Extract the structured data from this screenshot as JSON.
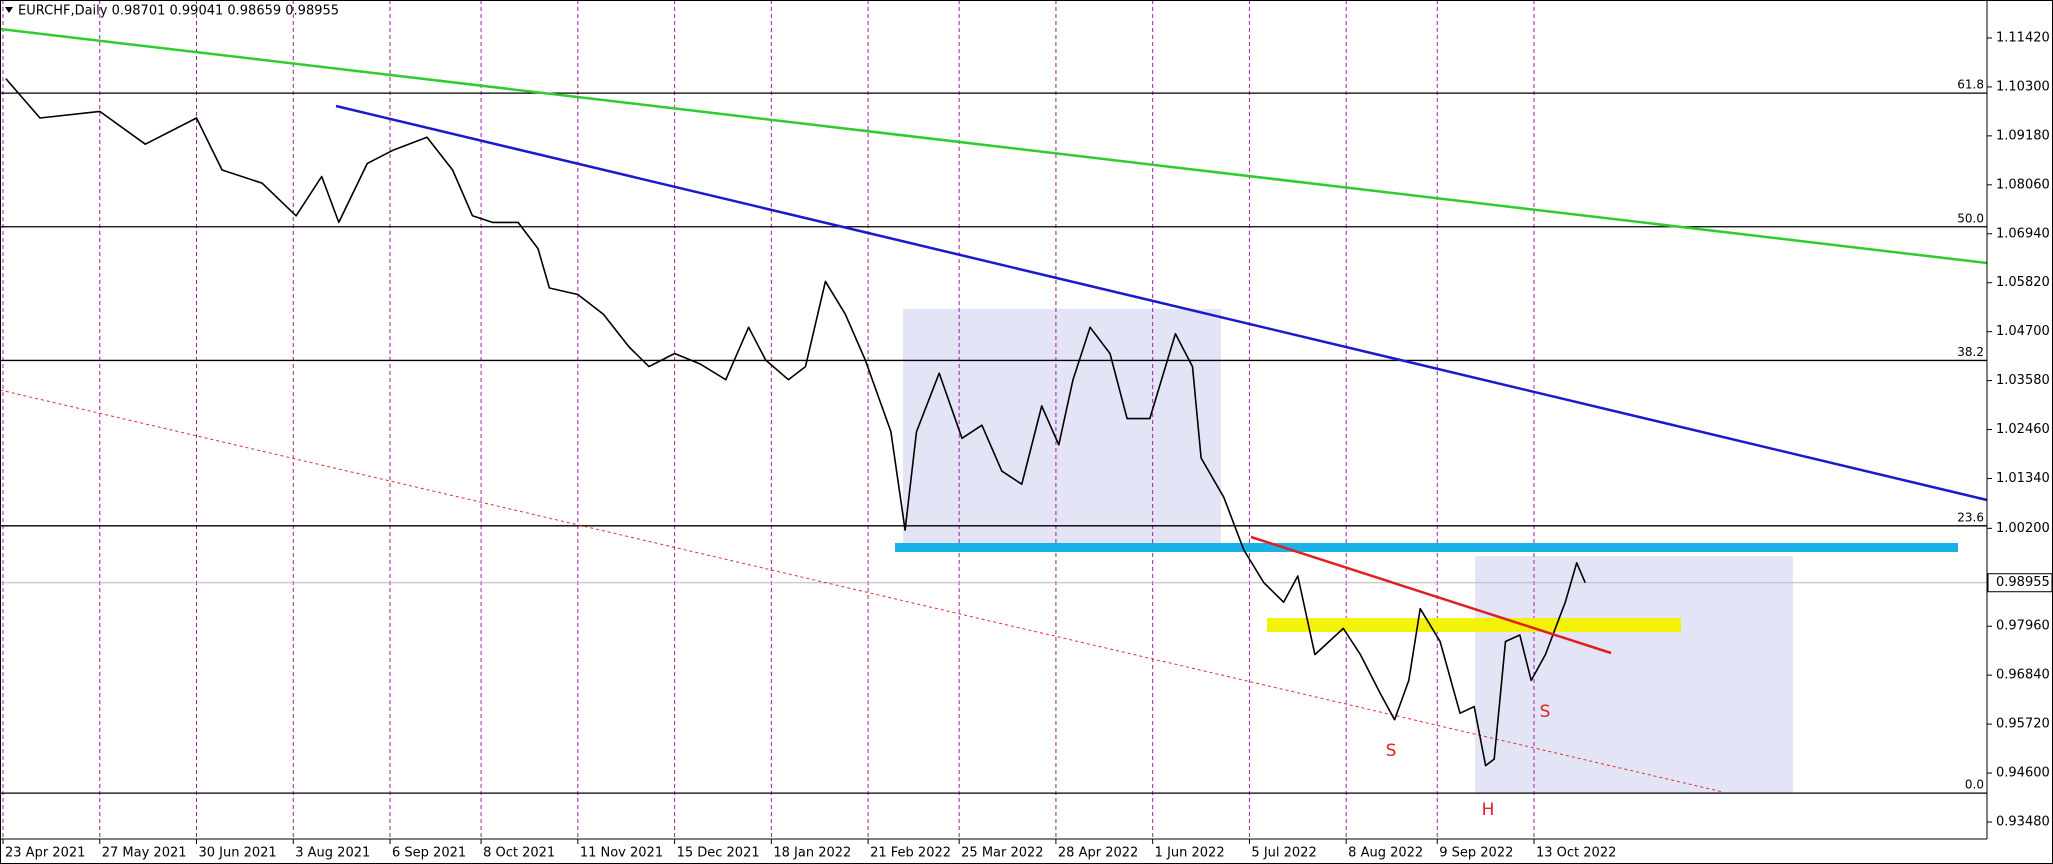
{
  "chart_data": {
    "type": "line",
    "title": "EURCHF,Daily  0.98701 0.99041 0.98659 0.98955",
    "color": "#000000",
    "x": [
      "24 Apr 2021",
      "6 May 2021",
      "27 May 2021",
      "12 Jun 2021",
      "30 Jun 2021",
      "9 Jul 2021",
      "23 Jul 2021",
      "4 Aug 2021",
      "13 Aug 2021",
      "19 Aug 2021",
      "29 Aug 2021",
      "7 Sep 2021",
      "19 Sep 2021",
      "28 Sep 2021",
      "5 Oct 2021",
      "12 Oct 2021",
      "21 Oct 2021",
      "28 Oct 2021",
      "1 Nov 2021",
      "11 Nov 2021",
      "20 Nov 2021",
      "29 Nov 2021",
      "6 Dec 2021",
      "15 Dec 2021",
      "24 Dec 2021",
      "2 Jan 2022",
      "10 Jan 2022",
      "16 Jan 2022",
      "24 Jan 2022",
      "30 Jan 2022",
      "6 Feb 2022",
      "13 Feb 2022",
      "20 Feb 2022",
      "1 Mar 2022",
      "6 Mar 2022",
      "10 Mar 2022",
      "18 Mar 2022",
      "26 Mar 2022",
      "2 Apr 2022",
      "9 Apr 2022",
      "16 Apr 2022",
      "23 Apr 2022",
      "29 Apr 2022",
      "4 May 2022",
      "10 May 2022",
      "17 May 2022",
      "23 May 2022",
      "31 May 2022",
      "9 Jun 2022",
      "15 Jun 2022",
      "18 Jun 2022",
      "26 Jun 2022",
      "3 Jul 2022",
      "10 Jul 2022",
      "17 Jul 2022",
      "22 Jul 2022",
      "28 Jul 2022",
      "7 Aug 2022",
      "13 Aug 2022",
      "20 Aug 2022",
      "25 Aug 2022",
      "30 Aug 2022",
      "3 Sep 2022",
      "10 Sep 2022",
      "17 Sep 2022",
      "22 Sep 2022",
      "26 Sep 2022",
      "29 Sep 2022",
      "3 Oct 2022",
      "8 Oct 2022",
      "12 Oct 2022",
      "17 Oct 2022",
      "24 Oct 2022",
      "28 Oct 2022",
      "31 Oct 2022"
    ],
    "values": [
      1.1049,
      1.0959,
      1.0974,
      1.0899,
      1.0959,
      1.084,
      1.081,
      1.0735,
      1.0825,
      1.072,
      1.0855,
      1.0885,
      1.0915,
      1.084,
      1.0735,
      1.072,
      1.072,
      1.066,
      1.057,
      1.0555,
      1.051,
      1.0435,
      1.039,
      1.042,
      1.0396,
      1.036,
      1.048,
      1.0405,
      1.036,
      1.039,
      1.0585,
      1.051,
      1.0405,
      1.0241,
      1.0016,
      1.0241,
      1.0375,
      1.0226,
      1.0256,
      1.0151,
      1.0121,
      1.03,
      1.0211,
      1.036,
      1.048,
      1.042,
      1.0271,
      1.0271,
      1.0465,
      1.039,
      1.0181,
      1.0091,
      0.9971,
      0.9896,
      0.9851,
      0.9911,
      0.9731,
      0.9791,
      0.9731,
      0.9642,
      0.9582,
      0.9672,
      0.9836,
      0.9761,
      0.9597,
      0.9612,
      0.9477,
      0.9492,
      0.9761,
      0.9776,
      0.9672,
      0.9731,
      0.9851,
      0.9941,
      0.98955
    ],
    "xticks": [
      "23 Apr 2021",
      "27 May 2021",
      "30 Jun 2021",
      "3 Aug 2021",
      "6 Sep 2021",
      "8 Oct 2021",
      "11 Nov 2021",
      "15 Dec 2021",
      "18 Jan 2022",
      "21 Feb 2022",
      "25 Mar 2022",
      "28 Apr 2022",
      "1 Jun 2022",
      "5 Jul 2022",
      "8 Aug 2022",
      "9 Sep 2022",
      "13 Oct 2022"
    ],
    "ylim": [
      0.93091,
      1.12289
    ],
    "yticks": [
      {
        "value": 1.1142,
        "label": "1.11420"
      },
      {
        "value": 1.103,
        "label": "1.10300"
      },
      {
        "value": 1.0918,
        "label": "1.09180"
      },
      {
        "value": 1.0806,
        "label": "1.08060"
      },
      {
        "value": 1.0694,
        "label": "1.06940"
      },
      {
        "value": 1.0582,
        "label": "1.05820"
      },
      {
        "value": 1.047,
        "label": "1.04700"
      },
      {
        "value": 1.0358,
        "label": "1.03580"
      },
      {
        "value": 1.0246,
        "label": "1.02460"
      },
      {
        "value": 1.0134,
        "label": "1.01340"
      },
      {
        "value": 1.002,
        "label": "1.00200"
      },
      {
        "value": 0.9796,
        "label": "0.97960"
      },
      {
        "value": 0.9684,
        "label": "0.96840"
      },
      {
        "value": 0.9572,
        "label": "0.95720"
      },
      {
        "value": 0.946,
        "label": "0.94600"
      },
      {
        "value": 0.9348,
        "label": "0.93480"
      }
    ],
    "last_price": {
      "value": 0.98955,
      "label": "0.98955"
    },
    "fib": {
      "levels": [
        61.8,
        {
          "value": 50,
          "label": "50.0"
        },
        38.2,
        23.6,
        {
          "value": 0,
          "label": "0.0"
        }
      ],
      "range": [
        0.9414,
        1.2006
      ]
    },
    "annotations": [
      "S",
      "H",
      "S"
    ],
    "grid": true,
    "grid_color": "#a020a0"
  }
}
